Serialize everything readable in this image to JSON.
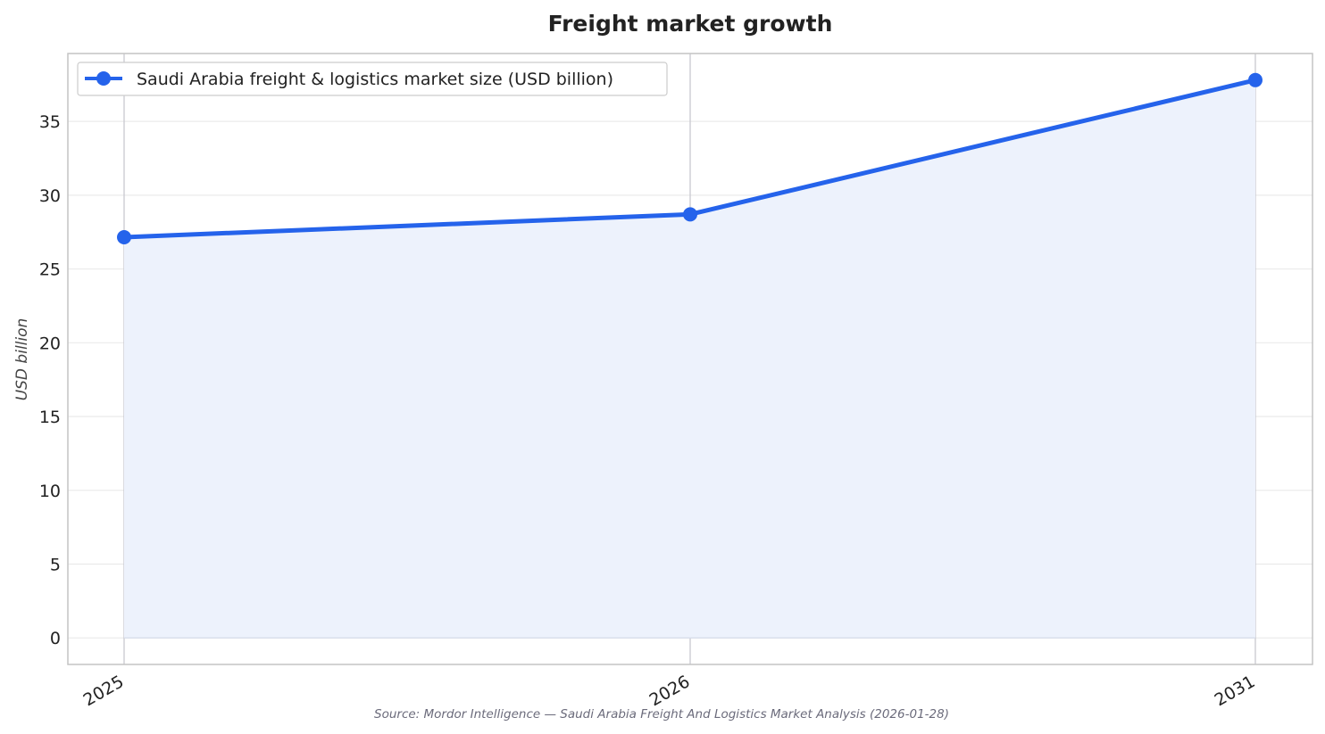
{
  "chart_data": {
    "type": "line",
    "title": "Freight market growth",
    "xlabel": "",
    "ylabel": "USD billion",
    "categories": [
      "2025",
      "2026",
      "2031"
    ],
    "series": [
      {
        "name": "Saudi Arabia freight & logistics market size (USD billion)",
        "values": [
          27.15,
          28.7,
          37.8
        ]
      }
    ],
    "y_ticks": [
      "0",
      "5",
      "10",
      "15",
      "20",
      "25",
      "30",
      "35"
    ],
    "ylim": [
      -1.8,
      39.6
    ],
    "grid": true,
    "area_fill": true,
    "legend_position": "top-left",
    "source": "Source: Mordor Intelligence — Saudi Arabia Freight And Logistics Market Analysis (2026-01-28)"
  },
  "colors": {
    "line": "#2563eb",
    "fill": "#edf2fc",
    "grid": "#ebebeb",
    "vgrid": "#c8c8d0",
    "frame": "#c4c4c4"
  }
}
